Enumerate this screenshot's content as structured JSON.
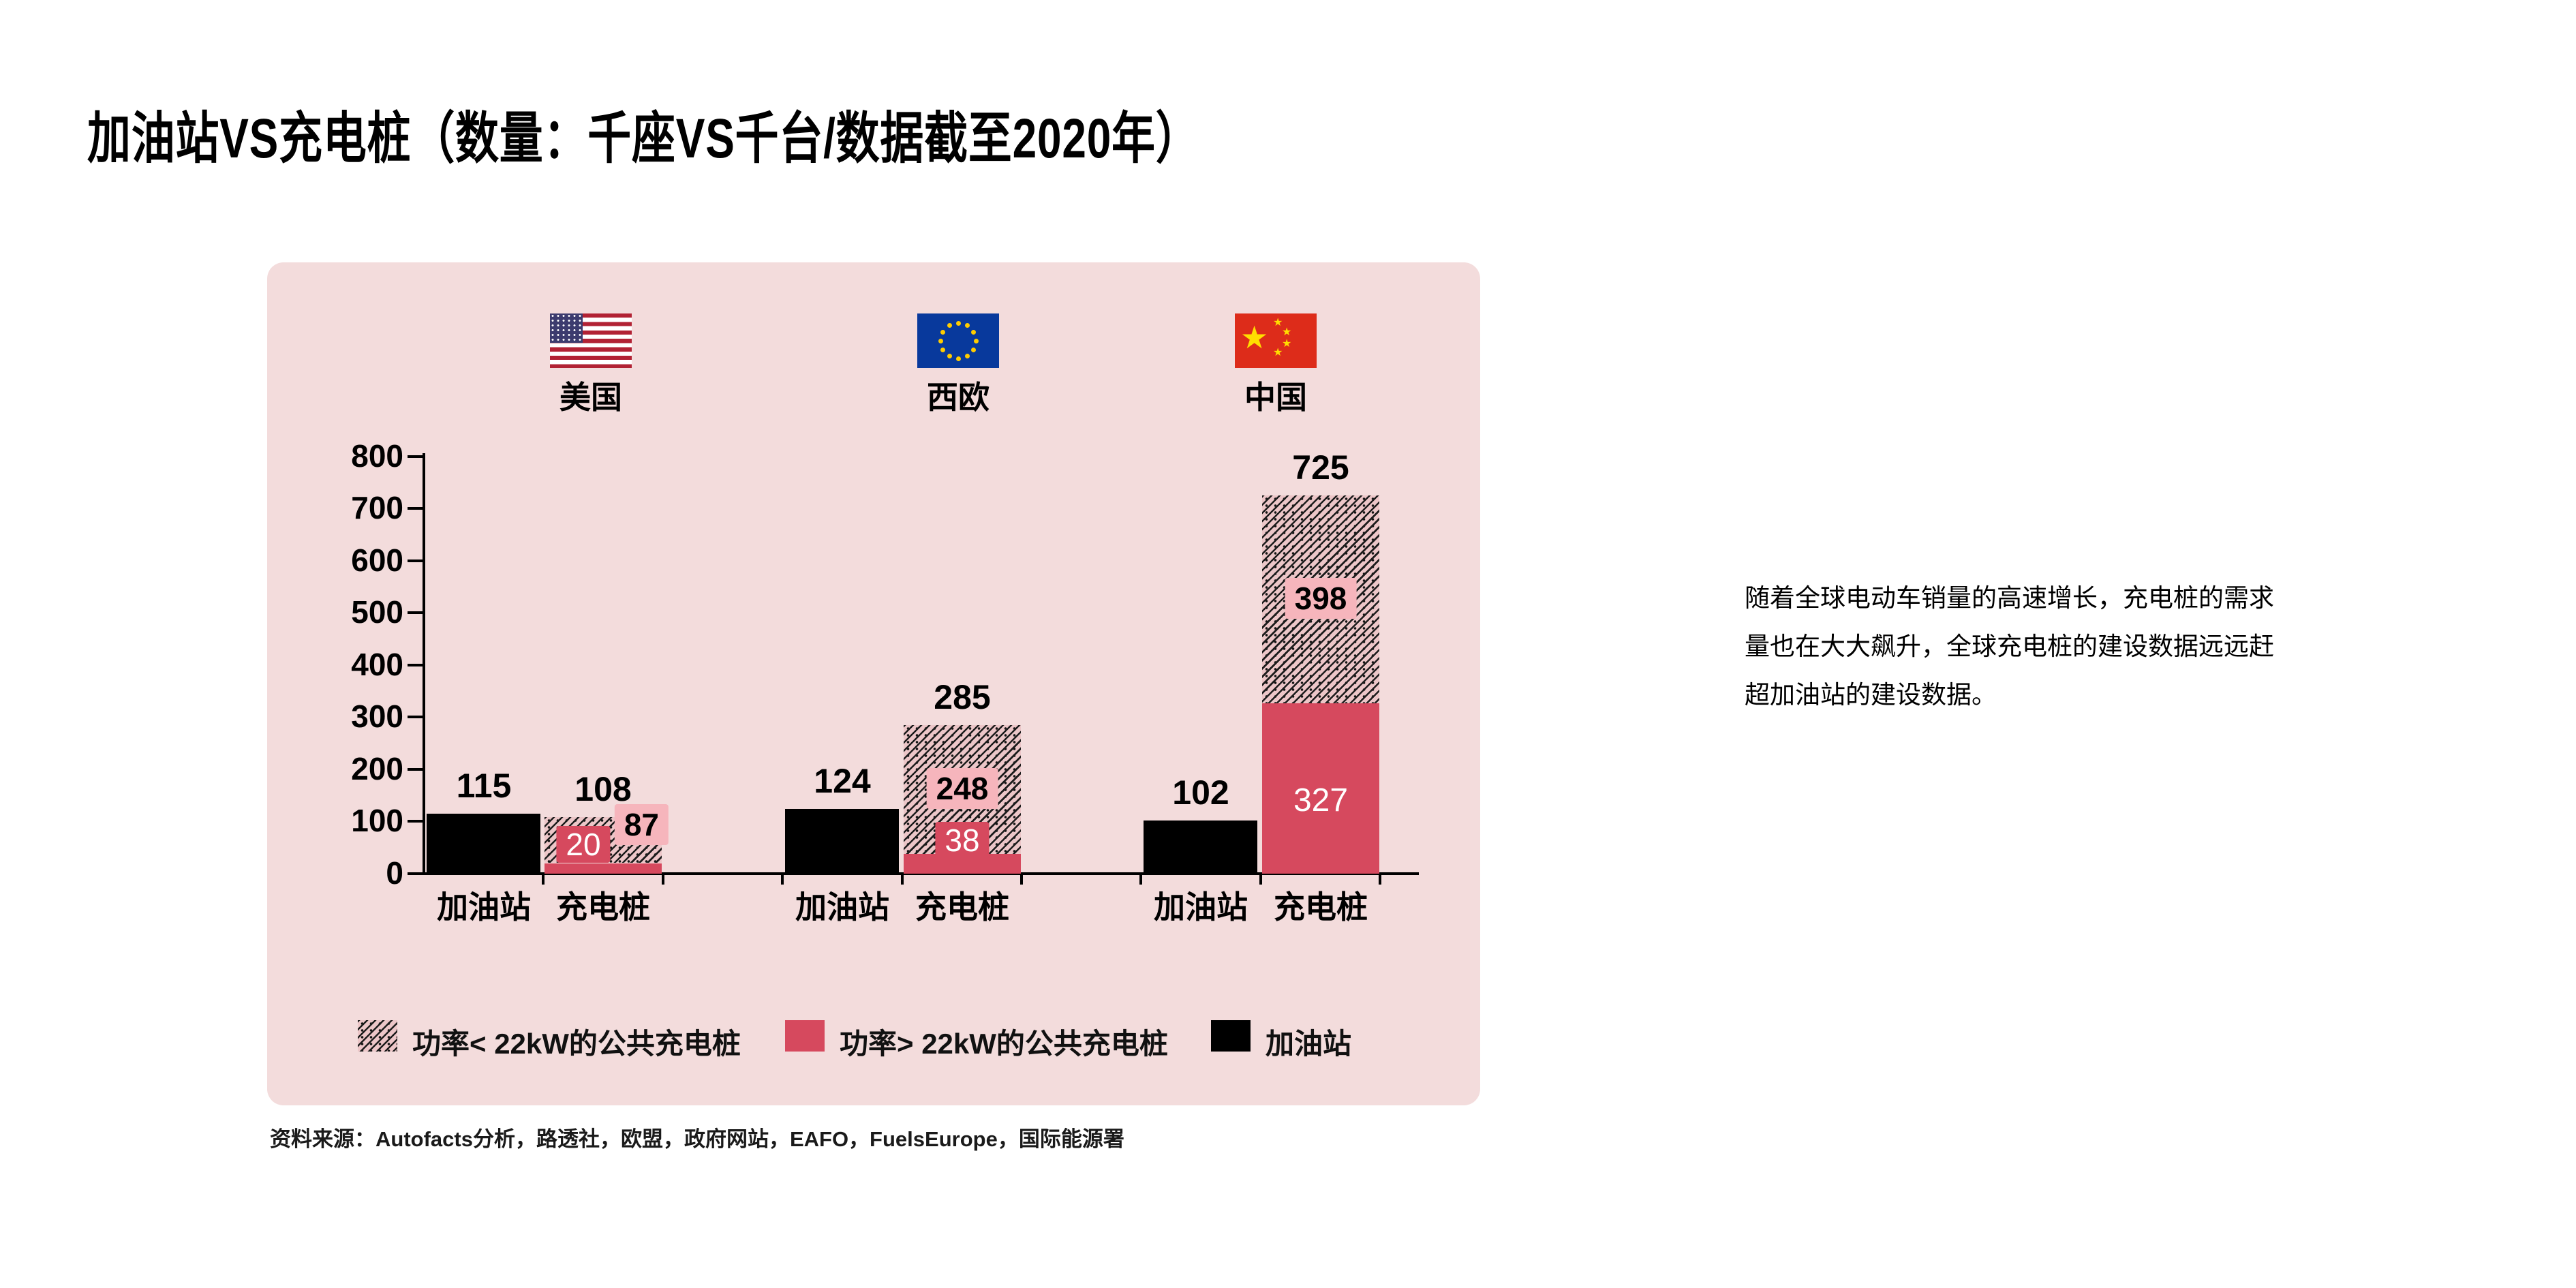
{
  "title": "加油站VS充电桩（数量：千座VS千台/数据截至2020年）",
  "commentary": {
    "lines": [
      "随着全球电动车销量的高速增长，充电桩的需求",
      "量也在大大飙升，全球充电桩的建设数据远远赶",
      "超加油站的建设数据。"
    ]
  },
  "source": "资料来源：Autofacts分析，路透社，欧盟，政府网站，EAFO，FuelsEurope，国际能源署",
  "chart_data": {
    "type": "bar",
    "title": "加油站VS充电桩",
    "units_note": "数量：千座VS千台",
    "as_of": "数据截至2020年",
    "ylim": [
      0,
      800
    ],
    "ytick_step": 100,
    "grid": false,
    "legend_position": "bottom",
    "categories": [
      "加油站",
      "充电桩"
    ],
    "groups": [
      {
        "region": "美国",
        "flag": "us",
        "gas_station": 115,
        "charging_total": 108,
        "charging_under22kW": 87,
        "charging_over22kW": 20
      },
      {
        "region": "西欧",
        "flag": "eu",
        "gas_station": 124,
        "charging_total": 285,
        "charging_under22kW": 248,
        "charging_over22kW": 38
      },
      {
        "region": "中国",
        "flag": "cn",
        "gas_station": 102,
        "charging_total": 725,
        "charging_under22kW": 398,
        "charging_over22kW": 327
      }
    ],
    "legend": [
      {
        "label": "功率< 22kW的公共充电桩",
        "swatch": "hatched"
      },
      {
        "label": "功率> 22kW的公共充电桩",
        "swatch": "crimson"
      },
      {
        "label": "加油站",
        "swatch": "black"
      }
    ],
    "colors": {
      "panel": "#f3dcdc",
      "crimson": "#d6495e",
      "label_pink": "#f6b5bc",
      "hatch_base": "#ecc6c8",
      "bar_black": "#000000"
    }
  }
}
